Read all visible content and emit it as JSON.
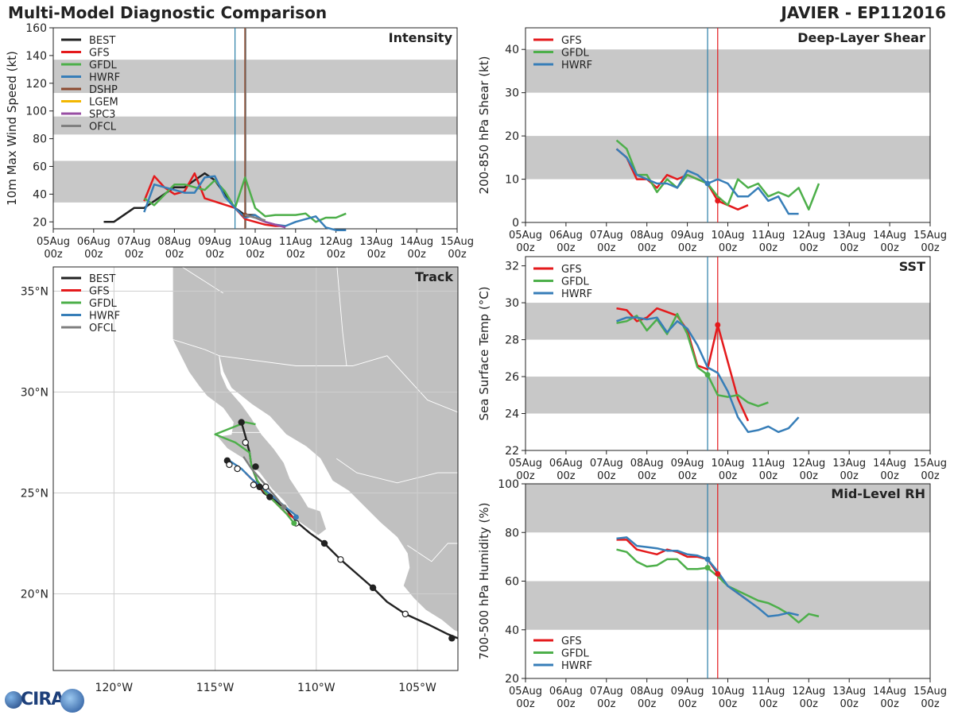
{
  "header": {
    "left_title": "Multi-Model Diagnostic Comparison",
    "right_title": "JAVIER - EP112016"
  },
  "colors": {
    "BEST": "#222222",
    "GFS": "#e41a1c",
    "GFDL": "#4daf4a",
    "HWRF": "#377eb8",
    "DSHP": "#8c4a2f",
    "LGEM": "#f2b701",
    "SPC3": "#984ea3",
    "OFCL": "#808080",
    "band": "#c8c8c8",
    "land": "#c0c0c0",
    "vline_blue": "#2c7fa8",
    "vline_red": "#e41a1c"
  },
  "time_ticks": [
    "05Aug 00z",
    "06Aug 00z",
    "07Aug 00z",
    "08Aug 00z",
    "09Aug 00z",
    "10Aug 00z",
    "11Aug 00z",
    "12Aug 00z",
    "13Aug 00z",
    "14Aug 00z",
    "15Aug 00z"
  ],
  "chart_data": [
    {
      "id": "intensity",
      "type": "line",
      "title": "Intensity",
      "ylabel": "10m Max Wind Speed (kt)",
      "xlim": [
        0,
        10
      ],
      "ylim": [
        15,
        160
      ],
      "yticks": [
        20,
        40,
        60,
        80,
        100,
        120,
        140,
        160
      ],
      "bands": [
        [
          34,
          64
        ],
        [
          83,
          96
        ],
        [
          113,
          137
        ]
      ],
      "vlines": [
        {
          "x": 4.5,
          "color": "vline_blue"
        },
        {
          "x": 4.75,
          "color": "DSHP"
        },
        {
          "x": 4.77,
          "color": "OFCL"
        }
      ],
      "legend": [
        "BEST",
        "GFS",
        "GFDL",
        "HWRF",
        "DSHP",
        "LGEM",
        "SPC3",
        "OFCL"
      ],
      "series": [
        {
          "name": "BEST",
          "x": [
            1.25,
            1.5,
            2.0,
            2.25,
            2.5,
            2.75,
            3.0,
            3.25,
            3.5,
            3.75,
            4.0,
            4.25,
            4.5,
            4.75,
            5.0
          ],
          "y": [
            20,
            20,
            30,
            30,
            35,
            40,
            45,
            45,
            50,
            55,
            50,
            40,
            30,
            25,
            25
          ]
        },
        {
          "name": "GFS",
          "x": [
            2.25,
            2.5,
            2.75,
            3.0,
            3.25,
            3.5,
            3.75,
            4.5,
            4.75,
            5.0,
            5.25,
            5.5,
            5.75
          ],
          "y": [
            35,
            53,
            45,
            40,
            42,
            55,
            37,
            30,
            22,
            20,
            18,
            17,
            17
          ]
        },
        {
          "name": "GFDL",
          "x": [
            2.25,
            2.5,
            3.0,
            3.25,
            3.5,
            3.75,
            4.0,
            4.25,
            4.5,
            4.75,
            5.0,
            5.25,
            5.5,
            5.75,
            6.0,
            6.25,
            6.5,
            6.75,
            7.0,
            7.25
          ],
          "y": [
            37,
            32,
            47,
            47,
            45,
            43,
            50,
            42,
            30,
            52,
            30,
            24,
            25,
            25,
            25,
            26,
            20,
            23,
            23,
            26
          ]
        },
        {
          "name": "HWRF",
          "x": [
            2.25,
            2.5,
            2.75,
            3.0,
            3.25,
            3.5,
            3.75,
            4.0,
            4.25,
            4.5,
            4.75,
            5.0,
            5.25,
            5.5,
            5.75,
            6.0,
            6.25,
            6.5,
            6.75,
            7.0,
            7.25
          ],
          "y": [
            27,
            47,
            45,
            43,
            41,
            41,
            52,
            53,
            38,
            30,
            23,
            25,
            20,
            18,
            17,
            20,
            22,
            24,
            16,
            14,
            14
          ]
        },
        {
          "name": "DSHP",
          "x": [
            4.75
          ],
          "y": [
            25
          ]
        },
        {
          "name": "SPC3",
          "x": [
            4.75,
            5.0,
            5.25,
            5.5,
            5.75
          ],
          "y": [
            25,
            23,
            20,
            18,
            16
          ]
        },
        {
          "name": "OFCL",
          "x": [
            4.75,
            5.0,
            5.25
          ],
          "y": [
            25,
            23,
            21
          ]
        }
      ]
    },
    {
      "id": "shear",
      "type": "line",
      "title": "Deep-Layer Shear",
      "ylabel": "200-850 hPa Shear (kt)",
      "xlim": [
        0,
        10
      ],
      "ylim": [
        0,
        45
      ],
      "yticks": [
        0,
        10,
        20,
        30,
        40
      ],
      "bands": [
        [
          10,
          20
        ],
        [
          30,
          40
        ]
      ],
      "vlines": [
        {
          "x": 4.5,
          "color": "vline_blue"
        },
        {
          "x": 4.75,
          "color": "vline_red"
        }
      ],
      "legend": [
        "GFS",
        "GFDL",
        "HWRF"
      ],
      "series": [
        {
          "name": "GFS",
          "x": [
            2.25,
            2.5,
            2.75,
            3.0,
            3.25,
            3.5,
            3.75,
            4.0,
            4.25,
            4.5,
            4.75,
            5.0,
            5.25,
            5.5
          ],
          "y": [
            17,
            15,
            10,
            10,
            8,
            11,
            10,
            11,
            10,
            9,
            5,
            4,
            3,
            4
          ]
        },
        {
          "name": "GFDL",
          "x": [
            2.25,
            2.5,
            2.75,
            3.0,
            3.25,
            3.5,
            3.75,
            4.0,
            4.25,
            4.5,
            4.75,
            5.0,
            5.25,
            5.5,
            5.75,
            6.0,
            6.25,
            6.5,
            6.75,
            7.0,
            7.25
          ],
          "y": [
            19,
            17,
            11,
            11,
            7,
            10,
            8,
            11,
            10,
            9,
            6,
            4,
            10,
            8,
            9,
            6,
            7,
            6,
            8,
            3,
            9
          ]
        },
        {
          "name": "HWRF",
          "x": [
            2.25,
            2.5,
            2.75,
            3.0,
            3.25,
            3.5,
            3.75,
            4.0,
            4.25,
            4.5,
            4.75,
            5.0,
            5.25,
            5.5,
            5.75,
            6.0,
            6.25,
            6.5,
            6.75
          ],
          "y": [
            17,
            15,
            11,
            10,
            9,
            9,
            8,
            12,
            11,
            9,
            10,
            9,
            6,
            6,
            8,
            5,
            6,
            2,
            2
          ]
        },
        {
          "name": "GFS_marker",
          "x": [
            4.75
          ],
          "y": [
            5
          ]
        },
        {
          "name": "HWRF_marker",
          "x": [
            4.5
          ],
          "y": [
            9
          ]
        }
      ]
    },
    {
      "id": "sst",
      "type": "line",
      "title": "SST",
      "ylabel": "Sea Surface Temp (°C)",
      "xlim": [
        0,
        10
      ],
      "ylim": [
        22,
        32.5
      ],
      "yticks": [
        22,
        24,
        26,
        28,
        30,
        32
      ],
      "bands": [
        [
          24,
          26
        ],
        [
          28,
          30
        ]
      ],
      "vlines": [
        {
          "x": 4.5,
          "color": "vline_blue"
        },
        {
          "x": 4.75,
          "color": "vline_red"
        }
      ],
      "legend": [
        "GFS",
        "GFDL",
        "HWRF"
      ],
      "series": [
        {
          "name": "GFS",
          "x": [
            2.25,
            2.5,
            2.75,
            3.0,
            3.25,
            3.5,
            3.75,
            4.0,
            4.25,
            4.5,
            4.75,
            5.0,
            5.25,
            5.5
          ],
          "y": [
            29.7,
            29.6,
            29.0,
            29.2,
            29.7,
            29.5,
            29.3,
            28.5,
            26.6,
            26.4,
            28.8,
            26.8,
            24.8,
            23.6
          ]
        },
        {
          "name": "GFDL",
          "x": [
            2.25,
            2.5,
            2.75,
            3.0,
            3.25,
            3.5,
            3.75,
            4.0,
            4.25,
            4.5,
            4.75,
            5.0,
            5.25,
            5.5,
            5.75,
            6.0
          ],
          "y": [
            28.9,
            29.0,
            29.3,
            28.5,
            29.1,
            28.3,
            29.4,
            28.3,
            26.5,
            26.1,
            25.0,
            24.9,
            25.0,
            24.6,
            24.4,
            24.6
          ]
        },
        {
          "name": "HWRF",
          "x": [
            2.25,
            2.5,
            2.75,
            3.0,
            3.25,
            3.5,
            3.75,
            4.0,
            4.25,
            4.5,
            4.75,
            5.0,
            5.25,
            5.5,
            5.75,
            6.0,
            6.25,
            6.5,
            6.75
          ],
          "y": [
            29.0,
            29.2,
            29.2,
            29.1,
            29.2,
            28.4,
            29.0,
            28.6,
            27.7,
            26.5,
            26.2,
            25.2,
            23.8,
            23.0,
            23.1,
            23.3,
            23.0,
            23.2,
            23.8
          ]
        },
        {
          "name": "GFS_marker",
          "x": [
            4.75
          ],
          "y": [
            28.8
          ]
        },
        {
          "name": "GFDL_marker",
          "x": [
            4.5
          ],
          "y": [
            26.1
          ]
        }
      ]
    },
    {
      "id": "rh",
      "type": "line",
      "title": "Mid-Level RH",
      "ylabel": "700-500 hPa Humidity (%)",
      "xlim": [
        0,
        10
      ],
      "ylim": [
        20,
        100
      ],
      "yticks": [
        20,
        40,
        60,
        80,
        100
      ],
      "bands": [
        [
          40,
          60
        ],
        [
          80,
          100
        ]
      ],
      "vlines": [
        {
          "x": 4.5,
          "color": "vline_blue"
        },
        {
          "x": 4.75,
          "color": "vline_red"
        }
      ],
      "legend": [
        "GFS",
        "GFDL",
        "HWRF"
      ],
      "series": [
        {
          "name": "GFS",
          "x": [
            2.25,
            2.5,
            2.75,
            3.0,
            3.25,
            3.5,
            3.75,
            4.0,
            4.25,
            4.5,
            4.75,
            5.0,
            5.25,
            5.5
          ],
          "y": [
            77,
            77,
            73,
            72,
            71,
            73,
            72,
            70,
            70,
            69,
            63,
            58,
            55,
            52
          ]
        },
        {
          "name": "GFDL",
          "x": [
            2.25,
            2.5,
            2.75,
            3.0,
            3.25,
            3.5,
            3.75,
            4.0,
            4.25,
            4.5,
            4.75,
            5.0,
            5.25,
            5.5,
            5.75,
            6.0,
            6.25,
            6.5,
            6.75,
            7.0,
            7.25
          ],
          "y": [
            73,
            72,
            68,
            66,
            66.5,
            69,
            69,
            65,
            65,
            65.5,
            62,
            58,
            56,
            54,
            52,
            51,
            49,
            46.5,
            43,
            46.5,
            45.5
          ]
        },
        {
          "name": "HWRF",
          "x": [
            2.25,
            2.5,
            2.75,
            3.0,
            3.25,
            3.5,
            3.75,
            4.0,
            4.25,
            4.5,
            4.75,
            5.0,
            5.25,
            5.5,
            5.75,
            6.0,
            6.25,
            6.5,
            6.75
          ],
          "y": [
            77.5,
            78,
            74.5,
            74,
            73.5,
            72.5,
            72.5,
            71,
            70.5,
            69,
            64,
            58,
            55,
            52,
            49,
            45.5,
            46,
            47,
            46
          ]
        },
        {
          "name": "GFS_marker",
          "x": [
            4.75
          ],
          "y": [
            63
          ]
        },
        {
          "name": "GFDL_marker",
          "x": [
            4.5
          ],
          "y": [
            65.5
          ]
        },
        {
          "name": "HWRF_marker",
          "x": [
            4.5
          ],
          "y": [
            69
          ]
        }
      ]
    },
    {
      "id": "track",
      "type": "line",
      "title": "Track",
      "xlim": [
        -123,
        -103
      ],
      "ylim": [
        16.2,
        36.2
      ],
      "xticks": [
        -120,
        -115,
        -110,
        -105
      ],
      "xtick_labels": [
        "120°W",
        "115°W",
        "110°W",
        "105°W"
      ],
      "yticks": [
        20,
        25,
        30,
        35
      ],
      "ytick_labels": [
        "20°N",
        "25°N",
        "30°N",
        "35°N"
      ],
      "legend": [
        "BEST",
        "GFS",
        "GFDL",
        "HWRF",
        "OFCL"
      ],
      "series": [
        {
          "name": "BEST",
          "lon": [
            -103,
            -103.5,
            -104.5,
            -105.6,
            -106.5,
            -107.2,
            -108.0,
            -108.8,
            -109.6,
            -110.3,
            -110.9,
            -111.5,
            -112.0,
            -112.3,
            -112.6,
            -112.8,
            -113.0,
            -113.2,
            -113.3,
            -113.5,
            -113.7
          ],
          "lat": [
            17.8,
            18.0,
            18.5,
            19.0,
            19.6,
            20.3,
            21.0,
            21.7,
            22.5,
            23.0,
            23.5,
            24.2,
            24.6,
            24.8,
            25.0,
            25.3,
            25.8,
            26.3,
            27.0,
            27.8,
            28.5
          ]
        },
        {
          "name": "GFS",
          "lon": [
            -111.0,
            -111.5,
            -112.0,
            -112.5,
            -113.0,
            -113.5
          ],
          "lat": [
            23.7,
            24.0,
            24.5,
            25.0,
            25.5,
            26.0
          ]
        },
        {
          "name": "GFDL",
          "lon": [
            -111.1,
            -111.5,
            -112.0,
            -112.5,
            -112.9,
            -113.2,
            -113.3,
            -114.0,
            -115.0,
            -113.5,
            -113.0
          ],
          "lat": [
            23.5,
            24.0,
            24.5,
            25.0,
            25.6,
            26.3,
            27.0,
            27.5,
            27.9,
            28.5,
            28.4
          ]
        },
        {
          "name": "HWRF",
          "lon": [
            -110.9,
            -111.4,
            -112.0,
            -112.6,
            -113.2,
            -113.7,
            -114.3
          ],
          "lat": [
            23.8,
            24.2,
            24.7,
            25.2,
            25.7,
            26.2,
            26.6
          ]
        },
        {
          "name": "OFCL",
          "lon": [
            -111.6,
            -112.0,
            -112.6,
            -113.2,
            -113.6
          ],
          "lat": [
            24.3,
            24.8,
            25.5,
            26.2,
            26.8
          ]
        }
      ],
      "best_markers": [
        {
          "lon": -103.3,
          "lat": 17.8,
          "open": false
        },
        {
          "lon": -105.6,
          "lat": 19.0,
          "open": true
        },
        {
          "lon": -107.2,
          "lat": 20.3,
          "open": false
        },
        {
          "lon": -108.8,
          "lat": 21.7,
          "open": true
        },
        {
          "lon": -109.6,
          "lat": 22.5,
          "open": false
        },
        {
          "lon": -111.0,
          "lat": 23.5,
          "open": true
        },
        {
          "lon": -112.3,
          "lat": 24.8,
          "open": false
        },
        {
          "lon": -112.5,
          "lat": 25.3,
          "open": true
        },
        {
          "lon": -112.8,
          "lat": 25.3,
          "open": false
        },
        {
          "lon": -113.1,
          "lat": 25.4,
          "open": true
        },
        {
          "lon": -113.0,
          "lat": 26.3,
          "open": false
        },
        {
          "lon": -113.9,
          "lat": 26.2,
          "open": true
        },
        {
          "lon": -114.4,
          "lat": 26.6,
          "open": false
        },
        {
          "lon": -114.3,
          "lat": 26.4,
          "open": true
        },
        {
          "lon": -113.5,
          "lat": 27.5,
          "open": true
        },
        {
          "lon": -113.7,
          "lat": 28.5,
          "open": false
        }
      ]
    }
  ]
}
